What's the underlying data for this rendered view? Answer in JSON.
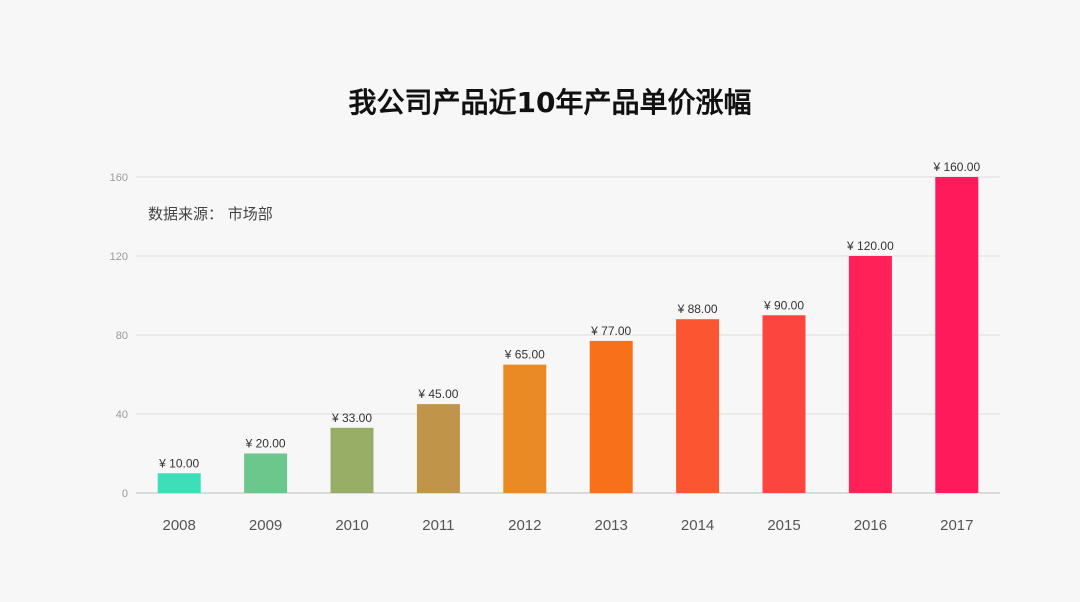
{
  "chart_data": {
    "type": "bar",
    "title": "我公司产品近10年产品单价涨幅",
    "subtitle": "数据来源： 市场部",
    "categories": [
      "2008",
      "2009",
      "2010",
      "2011",
      "2012",
      "2013",
      "2014",
      "2015",
      "2016",
      "2017"
    ],
    "values": [
      10,
      20,
      33,
      45,
      65,
      77,
      88,
      90,
      120,
      160
    ],
    "data_labels": [
      "¥ 10.00",
      "¥ 20.00",
      "¥ 33.00",
      "¥ 45.00",
      "¥ 65.00",
      "¥ 77.00",
      "¥ 88.00",
      "¥ 90.00",
      "¥ 120.00",
      "¥ 160.00"
    ],
    "colors": [
      "#3ddfb8",
      "#6cc78c",
      "#98ad66",
      "#c0954a",
      "#ea8a25",
      "#f8711a",
      "#fb5531",
      "#fd4540",
      "#ff2158",
      "#ff1a5b"
    ],
    "ylim": [
      0,
      160
    ],
    "yticks": [
      "0",
      "40",
      "80",
      "120",
      "160"
    ],
    "grid": true,
    "xlabel": "",
    "ylabel": ""
  }
}
